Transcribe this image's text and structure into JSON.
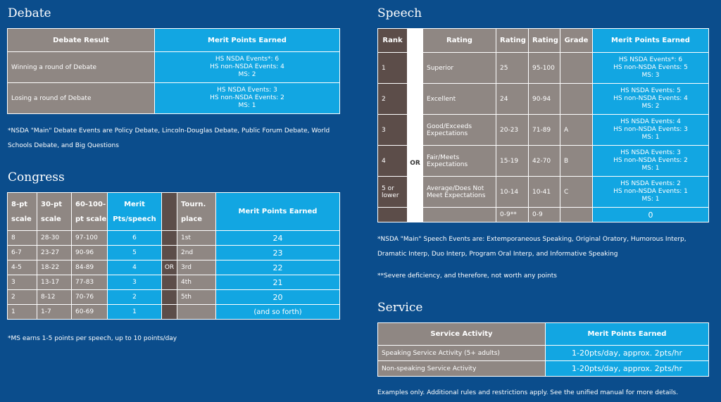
{
  "debate": {
    "title": "Debate",
    "headers": [
      "Debate Result",
      "Merit Points Earned"
    ],
    "rows": [
      {
        "result": "Winning a round of Debate",
        "points": [
          "HS NSDA Events*: 6",
          "HS non-NSDA Events: 4",
          "MS: 2"
        ]
      },
      {
        "result": "Losing a round of Debate",
        "points": [
          "HS NSDA Events: 3",
          "HS non-NSDA Events: 2",
          "MS: 1"
        ]
      }
    ],
    "note": [
      "*NSDA \"Main\" Debate Events are Policy Debate, Lincoln-Douglas Debate, Public Forum Debate, World",
      "Schools Debate, and Big Questions"
    ]
  },
  "congress": {
    "title": "Congress",
    "headers": {
      "h1": [
        "8-pt",
        "scale"
      ],
      "h2": [
        "30-pt",
        "scale"
      ],
      "h3": [
        "60-100-",
        "pt scale"
      ],
      "h4": [
        "Merit",
        "Pts/speech"
      ],
      "h5": [
        "Tourn.",
        "place"
      ],
      "h6": "Merit Points Earned"
    },
    "or_label": "OR",
    "rows": [
      [
        "8",
        "28-30",
        "97-100",
        "6",
        "1st",
        "24"
      ],
      [
        "6-7",
        "23-27",
        "90-96",
        "5",
        "2nd",
        "23"
      ],
      [
        "4-5",
        "18-22",
        "84-89",
        "4",
        "3rd",
        "22"
      ],
      [
        "3",
        "13-17",
        "77-83",
        "3",
        "4th",
        "21"
      ],
      [
        "2",
        "8-12",
        "70-76",
        "2",
        "5th",
        "20"
      ],
      [
        "1",
        "1-7",
        "60-69",
        "1",
        "",
        "(and so forth)"
      ]
    ],
    "note": "*MS earns 1-5 points per speech, up to 10 points/day"
  },
  "speech": {
    "title": "Speech",
    "headers": [
      "Rank",
      "Rating",
      "Rating",
      "Rating",
      "Grade",
      "Merit Points Earned"
    ],
    "or_label": "OR",
    "rows": [
      {
        "rank": "1",
        "rating": "Superior",
        "r2": "25",
        "r3": "95-100",
        "grade": "",
        "points": [
          "HS NSDA Events*: 6",
          "HS non-NSDA Events: 5",
          "MS: 3"
        ]
      },
      {
        "rank": "2",
        "rating": "Excellent",
        "r2": "24",
        "r3": "90-94",
        "grade": "",
        "points": [
          "HS NSDA Events: 5",
          "HS non-NSDA Events: 4",
          "MS: 2"
        ]
      },
      {
        "rank": "3",
        "rating": "Good/Exceeds Expectations",
        "r2": "20-23",
        "r3": "71-89",
        "grade": "A",
        "points": [
          "HS NSDA Events: 4",
          "HS non-NSDA Events: 3",
          "MS: 1"
        ]
      },
      {
        "rank": "4",
        "rating": "Fair/Meets Expectations",
        "r2": "15-19",
        "r3": "42-70",
        "grade": "B",
        "points": [
          "HS NSDA Events: 3",
          "HS non-NSDA Events: 2",
          "MS: 1"
        ]
      },
      {
        "rank": "5 or lower",
        "rating": "Average/Does Not Meet Expectations",
        "r2": "10-14",
        "r3": "10-41",
        "grade": "C",
        "points": [
          "HS NSDA Events: 2",
          "HS non-NSDA Events: 1",
          "MS: 1"
        ]
      },
      {
        "rank": "",
        "rating": "",
        "r2": "0-9**",
        "r3": "0-9",
        "grade": "",
        "points": [
          "0"
        ]
      }
    ],
    "note1": [
      "*NSDA \"Main\" Speech Events are: Extemporaneous Speaking, Original Oratory, Humorous Interp,",
      "Dramatic Interp, Duo Interp, Program Oral Interp, and Informative Speaking"
    ],
    "note2": "**Severe deficiency, and therefore, not worth any points"
  },
  "service": {
    "title": "Service",
    "headers": [
      "Service Activity",
      "Merit Points Earned"
    ],
    "rows": [
      [
        "Speaking Service Activity (5+ adults)",
        "1-20pts/day, approx. 2pts/hr"
      ],
      [
        "Non-speaking Service Activity",
        "1-20pts/day, approx. 2pts/hr"
      ]
    ],
    "note": "Examples only. Additional rules and restrictions apply. See the unified manual for more details."
  },
  "colors": {
    "background": "#0b4d8c",
    "gray_cell": "#8f8783",
    "blue_cell": "#12a6e2",
    "dark_cell": "#5c4d49"
  }
}
